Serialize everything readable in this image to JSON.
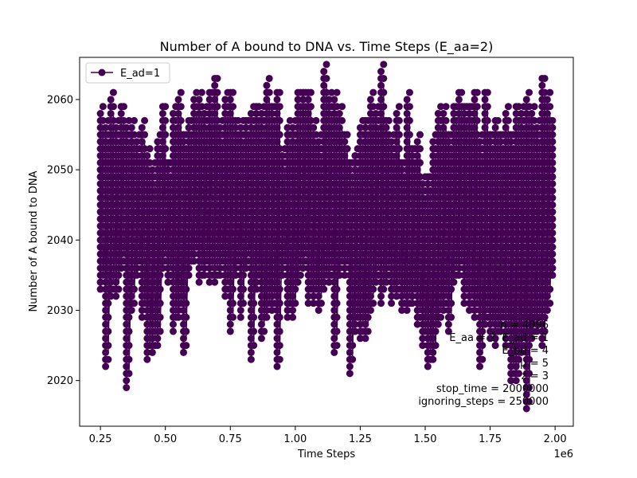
{
  "chart_data": {
    "type": "line",
    "title": "Number of A bound to DNA vs. Time Steps (E_aa=2)",
    "xlabel": "Time Steps",
    "ylabel": "Number of A bound to DNA",
    "x_offset_label": "1e6",
    "xlim": [
      0.17,
      2.07
    ],
    "ylim": [
      2013.5,
      2066
    ],
    "x_ticks": [
      0.25,
      0.5,
      0.75,
      1.0,
      1.25,
      1.5,
      1.75,
      2.0
    ],
    "x_tick_labels": [
      "0.25",
      "0.50",
      "0.75",
      "1.00",
      "1.25",
      "1.50",
      "1.75",
      "2.00"
    ],
    "y_ticks": [
      2020,
      2030,
      2040,
      2050,
      2060
    ],
    "y_tick_labels": [
      "2020",
      "2030",
      "2040",
      "2050",
      "2060"
    ],
    "grid": false,
    "legend_position": "top-left",
    "series": [
      {
        "name": "E_ad=1",
        "color": "#440154",
        "marker": "circle",
        "x": [
          0.25,
          0.27,
          0.29,
          0.31,
          0.33,
          0.35,
          0.37,
          0.39,
          0.41,
          0.43,
          0.45,
          0.47,
          0.49,
          0.51,
          0.53,
          0.55,
          0.57,
          0.59,
          0.61,
          0.63,
          0.65,
          0.67,
          0.69,
          0.71,
          0.73,
          0.75,
          0.77,
          0.79,
          0.81,
          0.83,
          0.85,
          0.87,
          0.89,
          0.91,
          0.93,
          0.95,
          0.97,
          0.99,
          1.01,
          1.03,
          1.05,
          1.07,
          1.09,
          1.11,
          1.13,
          1.15,
          1.17,
          1.19,
          1.21,
          1.23,
          1.25,
          1.27,
          1.29,
          1.31,
          1.33,
          1.35,
          1.37,
          1.39,
          1.41,
          1.43,
          1.45,
          1.47,
          1.49,
          1.51,
          1.53,
          1.55,
          1.57,
          1.59,
          1.61,
          1.63,
          1.65,
          1.67,
          1.69,
          1.71,
          1.73,
          1.75,
          1.77,
          1.79,
          1.81,
          1.83,
          1.85,
          1.87,
          1.89,
          1.91,
          1.93,
          1.95,
          1.97,
          1.99
        ],
        "y_min": [
          2033,
          2022,
          2032,
          2032,
          2036,
          2019,
          2030,
          2035,
          2029,
          2023,
          2024,
          2025,
          2036,
          2034,
          2027,
          2029,
          2024,
          2035,
          2037,
          2034,
          2035,
          2034,
          2034,
          2035,
          2032,
          2027,
          2035,
          2029,
          2036,
          2023,
          2033,
          2026,
          2029,
          2030,
          2022,
          2035,
          2029,
          2029,
          2034,
          2036,
          2031,
          2031,
          2030,
          2033,
          2034,
          2024,
          2035,
          2035,
          2021,
          2027,
          2026,
          2026,
          2030,
          2034,
          2031,
          2034,
          2031,
          2032,
          2030,
          2030,
          2031,
          2028,
          2025,
          2022,
          2023,
          2028,
          2030,
          2027,
          2034,
          2035,
          2031,
          2030,
          2029,
          2022,
          2028,
          2026,
          2025,
          2027,
          2025,
          2020,
          2020,
          2024,
          2016,
          2026,
          2027,
          2025,
          2030,
          2035
        ],
        "y_max": [
          2058,
          2056,
          2060,
          2056,
          2059,
          2056,
          2056,
          2054,
          2056,
          2052,
          2050,
          2054,
          2059,
          2051,
          2058,
          2060,
          2055,
          2057,
          2060,
          2060,
          2058,
          2061,
          2063,
          2056,
          2060,
          2061,
          2057,
          2056,
          2057,
          2058,
          2059,
          2058,
          2062,
          2059,
          2061,
          2052,
          2056,
          2056,
          2061,
          2061,
          2061,
          2056,
          2054,
          2064,
          2060,
          2060,
          2058,
          2055,
          2051,
          2052,
          2056,
          2057,
          2060,
          2058,
          2064,
          2057,
          2054,
          2058,
          2051,
          2060,
          2053,
          2054,
          2048,
          2049,
          2054,
          2058,
          2058,
          2055,
          2059,
          2061,
          2059,
          2059,
          2061,
          2054,
          2061,
          2055,
          2057,
          2055,
          2058,
          2055,
          2059,
          2058,
          2060,
          2058,
          2056,
          2063,
          2060,
          2057
        ]
      }
    ],
    "annotations": [
      "n = 4096",
      "E_aa = 2, E_ad = 1",
      "E_bd = 4",
      "μ = 5",
      "z = 3",
      "stop_time = 2000000",
      "ignoring_steps = 250000"
    ]
  }
}
